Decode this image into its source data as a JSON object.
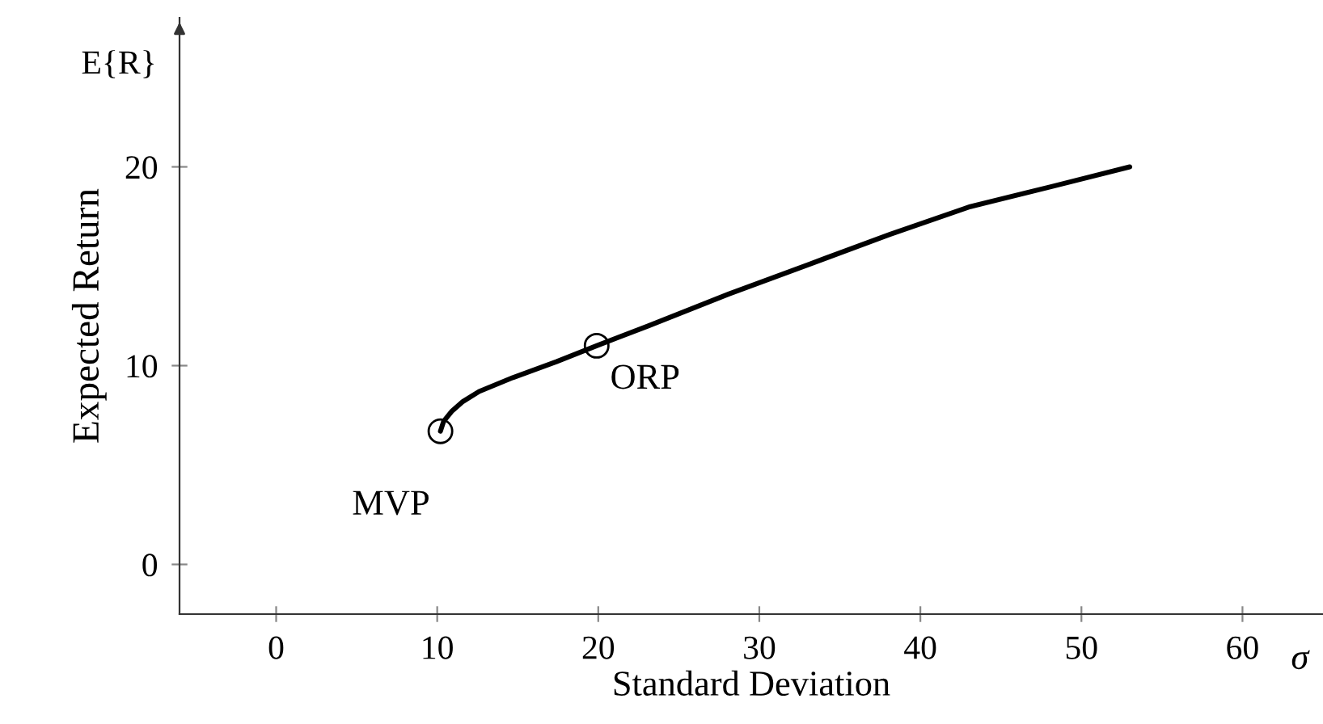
{
  "chart_data": {
    "type": "line",
    "xlabel": "Standard Deviation",
    "ylabel": "Expected Return",
    "xlim": [
      -6,
      65
    ],
    "ylim": [
      -2.5,
      27.5
    ],
    "xticks": [
      0,
      10,
      20,
      30,
      40,
      50,
      60
    ],
    "yticks": [
      0,
      10,
      20
    ],
    "grid": false,
    "series": [
      {
        "color": "#000000",
        "marker": "none",
        "line_style": "solid",
        "x": [
          10.2,
          10.4,
          10.9,
          11.6,
          12.6,
          14.7,
          17.4,
          19.9,
          23.1,
          28.1,
          33.1,
          38.1,
          43.1,
          48.1,
          53.0
        ],
        "values": [
          6.7,
          7.2,
          7.7,
          8.2,
          8.7,
          9.4,
          10.2,
          11.0,
          12.0,
          13.6,
          15.1,
          16.6,
          18.0,
          19.0,
          20.0
        ]
      },
      {
        "type": "scatter",
        "color": "#000000",
        "marker": "circle",
        "x": [
          10.2,
          19.9
        ],
        "values": [
          6.7,
          11.0
        ]
      }
    ],
    "annotations": [
      {
        "text": "MVP",
        "x": 10.2,
        "y": 6.7
      },
      {
        "text": "ORP",
        "x": 19.9,
        "y": 11.0
      },
      "E{R}",
      "σ"
    ]
  }
}
